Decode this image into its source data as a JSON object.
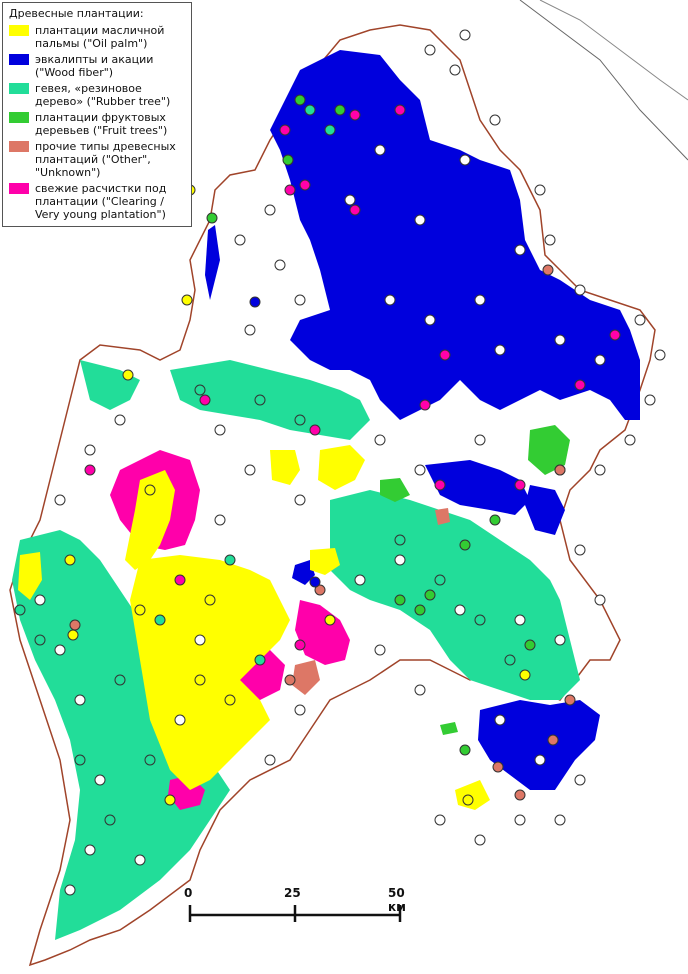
{
  "legend": {
    "title": "Древесные плантации:",
    "items": [
      {
        "label": "плантации масличной пальмы (\"Oil palm\")",
        "color": "#ffff00"
      },
      {
        "label": "эвкалипты и акации (\"Wood fiber\")",
        "color": "#0000dd"
      },
      {
        "label": "гевея, «резиновое дерево» (\"Rubber tree\")",
        "color": "#22dd99"
      },
      {
        "label": "плантации фруктовых деревьев (\"Fruit trees\")",
        "color": "#33cc33"
      },
      {
        "label": "прочие типы древесных плантаций (\"Other\", \"Unknown\")",
        "color": "#dd7766"
      },
      {
        "label": "свежие расчистки под плантации (\"Clearing / Very young plantation\")",
        "color": "#ff00aa"
      }
    ]
  },
  "scale_bar": {
    "ticks": [
      "0",
      "25",
      "50 км"
    ]
  },
  "colors": {
    "boundary": "#a0442a",
    "coast": "#666666",
    "marker_empty": "#ffffff",
    "marker_stroke": "#333333"
  }
}
